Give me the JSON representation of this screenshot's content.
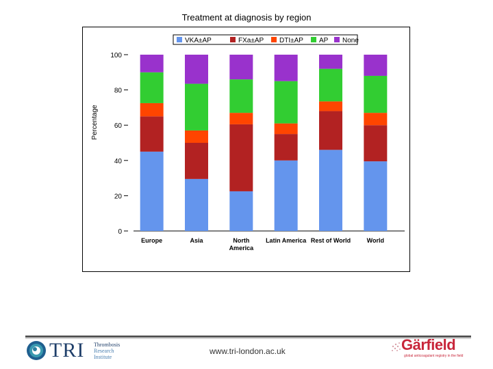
{
  "chart_data": {
    "type": "bar",
    "stacked": true,
    "title": "Treatment at diagnosis by region",
    "ylabel": "Percentage",
    "xlabel": "",
    "ylim": [
      0,
      100
    ],
    "yticks": [
      0,
      20,
      40,
      60,
      80,
      100
    ],
    "categories": [
      "Europe",
      "Asia",
      "North\nAmerica",
      "Latin America",
      "Rest of World",
      "World"
    ],
    "legend_position": "top",
    "series": [
      {
        "name": "VKA±AP",
        "color": "#6495ED",
        "values": [
          45,
          29.5,
          22.5,
          40,
          46,
          39.5
        ]
      },
      {
        "name": "FXa±AP",
        "color": "#B22222",
        "values": [
          20,
          20.5,
          38,
          15,
          22,
          20.5
        ]
      },
      {
        "name": "DTI±AP",
        "color": "#FF4500",
        "values": [
          7.5,
          7,
          6.5,
          6,
          5.5,
          7
        ]
      },
      {
        "name": "AP",
        "color": "#32CD32",
        "values": [
          17.5,
          26.5,
          19,
          24,
          18.5,
          21
        ]
      },
      {
        "name": "None",
        "color": "#9932CC",
        "values": [
          10,
          16.5,
          14,
          15,
          8,
          12
        ]
      }
    ]
  },
  "footer": {
    "tri_logo_text": "TRI",
    "tri_subtitle": [
      "Thrombosis",
      "Research",
      "Institute"
    ],
    "website": "www.tri-london.ac.uk",
    "garfield_word": "Gärfield",
    "garfield_tagline": "global anticoagulant registry in the field"
  }
}
